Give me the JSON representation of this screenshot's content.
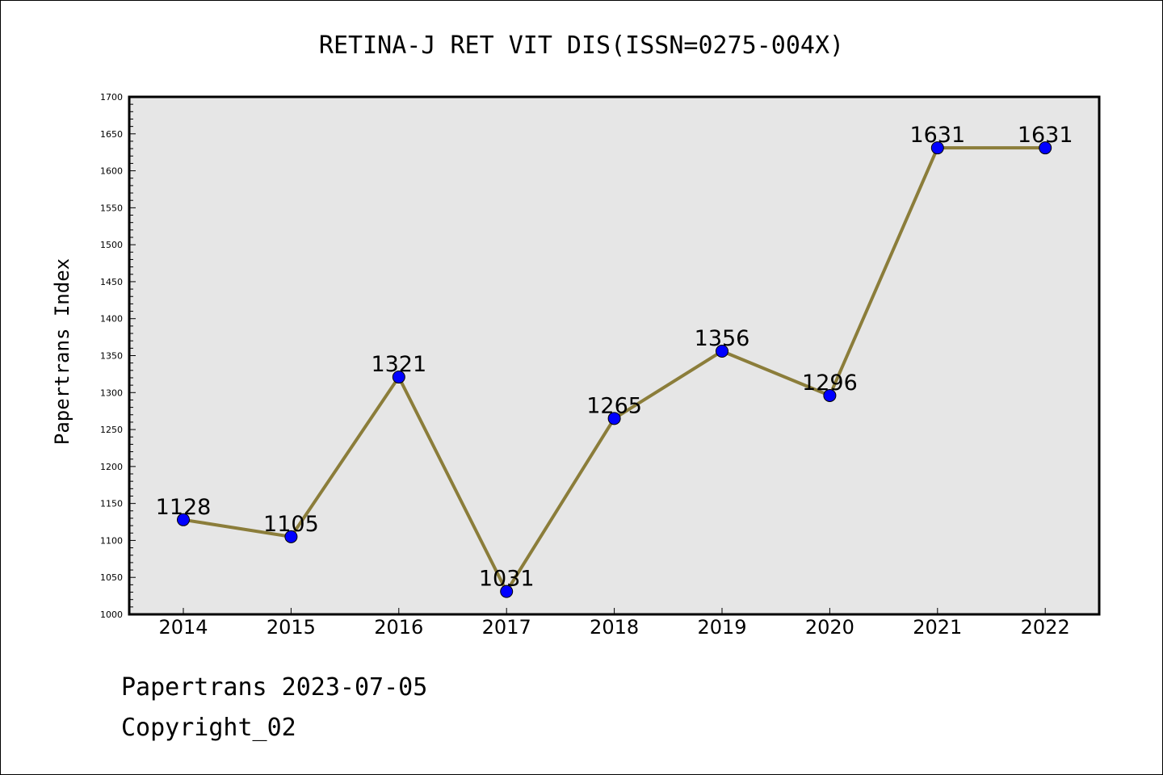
{
  "chart_data": {
    "type": "line",
    "title": "RETINA-J RET VIT DIS(ISSN=0275-004X)",
    "ylabel": "Papertrans Index",
    "xlabel": "",
    "categories": [
      "2014",
      "2015",
      "2016",
      "2017",
      "2018",
      "2019",
      "2020",
      "2021",
      "2022"
    ],
    "values": [
      1128,
      1105,
      1321,
      1031,
      1265,
      1356,
      1296,
      1631,
      1631
    ],
    "data_labels": [
      "1128",
      "1105",
      "1321",
      "1031",
      "1265",
      "1356",
      "1296",
      "1631",
      "1631"
    ],
    "ylim": [
      1000,
      1700
    ],
    "yticks": [
      1000,
      1050,
      1100,
      1150,
      1200,
      1250,
      1300,
      1350,
      1400,
      1450,
      1500,
      1550,
      1600,
      1650,
      1700
    ],
    "ytick_labels": [
      "1000",
      "1050",
      "1100",
      "1150",
      "1200",
      "1250",
      "1300",
      "1350",
      "1400",
      "1450",
      "1500",
      "1550",
      "1600",
      "1650",
      "1700"
    ],
    "grid": false,
    "colors": {
      "line": "#8B7D3A",
      "marker": "#0000FF",
      "plot_background": "#E6E6E6",
      "axes": "#000000"
    }
  },
  "footer": {
    "date_line": "Papertrans 2023-07-05",
    "copyright_line": "Copyright_02"
  }
}
